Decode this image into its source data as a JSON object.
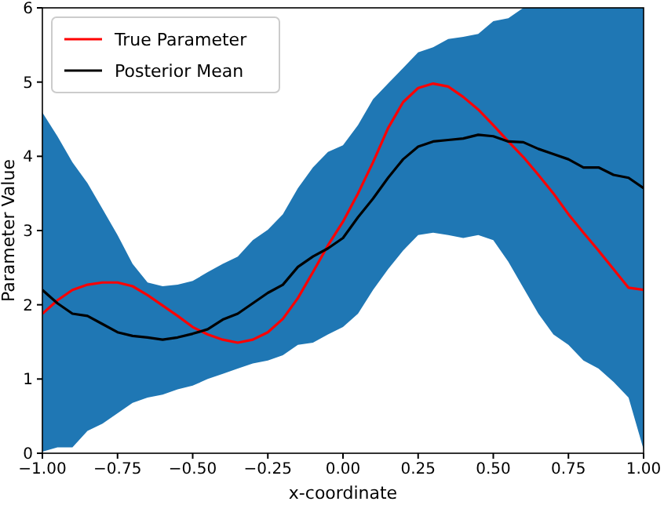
{
  "chart_data": {
    "type": "line",
    "xlabel": "x-coordinate",
    "ylabel": "Parameter Value",
    "x": [
      -1,
      -0.95,
      -0.9,
      -0.85,
      -0.8,
      -0.75,
      -0.7,
      -0.65,
      -0.6,
      -0.55,
      -0.5,
      -0.45,
      -0.4,
      -0.35,
      -0.3,
      -0.25,
      -0.2,
      -0.15,
      -0.1,
      -0.05,
      0,
      0.05,
      0.1,
      0.15,
      0.2,
      0.25,
      0.3,
      0.35,
      0.4,
      0.45,
      0.5,
      0.55,
      0.6,
      0.65,
      0.7,
      0.75,
      0.8,
      0.85,
      0.9,
      0.95,
      1
    ],
    "xlim": [
      -1,
      1
    ],
    "xticks": [
      {
        "value": -1,
        "label": "−1.00"
      },
      {
        "value": -0.75,
        "label": "−0.75"
      },
      {
        "value": -0.5,
        "label": "−0.50"
      },
      {
        "value": -0.25,
        "label": "−0.25"
      },
      {
        "value": 0,
        "label": "0.00"
      },
      {
        "value": 0.25,
        "label": "0.25"
      },
      {
        "value": 0.5,
        "label": "0.50"
      },
      {
        "value": 0.75,
        "label": "0.75"
      },
      {
        "value": 1,
        "label": "1.00"
      }
    ],
    "ylim": [
      0,
      6
    ],
    "yticks": [
      0,
      1,
      2,
      3,
      4,
      5,
      6
    ],
    "grid": false,
    "legend": "top left",
    "line_style": "solid",
    "marker": "none",
    "series": [
      {
        "name": "True Parameter",
        "color": "#ff0000",
        "values": [
          1.88,
          2.06,
          2.2,
          2.27,
          2.3,
          2.3,
          2.25,
          2.13,
          1.99,
          1.85,
          1.7,
          1.6,
          1.53,
          1.49,
          1.53,
          1.63,
          1.81,
          2.09,
          2.44,
          2.8,
          3.12,
          3.5,
          3.92,
          4.38,
          4.73,
          4.92,
          4.98,
          4.94,
          4.8,
          4.63,
          4.42,
          4.2,
          3.99,
          3.75,
          3.5,
          3.22,
          2.97,
          2.73,
          2.48,
          2.23,
          2.2
        ]
      },
      {
        "name": "Posterior Mean",
        "color": "#000000",
        "values": [
          2.2,
          2.02,
          1.88,
          1.85,
          1.74,
          1.63,
          1.58,
          1.56,
          1.53,
          1.56,
          1.61,
          1.67,
          1.8,
          1.88,
          2.02,
          2.16,
          2.27,
          2.51,
          2.65,
          2.76,
          2.9,
          3.18,
          3.43,
          3.71,
          3.96,
          4.13,
          4.2,
          4.22,
          4.24,
          4.29,
          4.27,
          4.2,
          4.19,
          4.1,
          4.03,
          3.96,
          3.85,
          3.85,
          3.75,
          3.71,
          3.57
        ],
        "lower": [
          0.02,
          0.08,
          0.08,
          0.3,
          0.4,
          0.54,
          0.68,
          0.75,
          0.79,
          0.86,
          0.91,
          1.0,
          1.07,
          1.14,
          1.21,
          1.25,
          1.32,
          1.46,
          1.49,
          1.6,
          1.7,
          1.88,
          2.2,
          2.48,
          2.73,
          2.94,
          2.97,
          2.94,
          2.9,
          2.94,
          2.87,
          2.58,
          2.23,
          1.88,
          1.6,
          1.46,
          1.25,
          1.14,
          0.96,
          0.75,
          0.05
        ],
        "upper": [
          4.59,
          4.27,
          3.92,
          3.64,
          3.29,
          2.94,
          2.55,
          2.3,
          2.25,
          2.27,
          2.32,
          2.44,
          2.55,
          2.65,
          2.87,
          3.01,
          3.22,
          3.57,
          3.85,
          4.06,
          4.15,
          4.42,
          4.77,
          4.98,
          5.19,
          5.4,
          5.47,
          5.58,
          5.61,
          5.65,
          5.82,
          5.86,
          6,
          6,
          6,
          6,
          6,
          6,
          6,
          6,
          6
        ]
      }
    ]
  }
}
